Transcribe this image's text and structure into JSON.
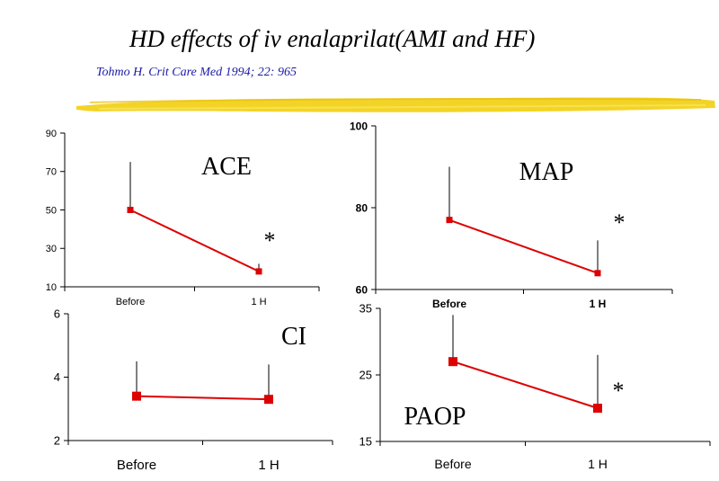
{
  "header": {
    "title": "HD effects of iv enalaprilat(AMI and HF)",
    "citation": "Tohmo H. Crit Care Med 1994; 22: 965"
  },
  "colors": {
    "series": "#dd0000",
    "axis": "#000000",
    "citation": "#1a1aa6",
    "highlighter": "#f2d21a"
  },
  "chart_data": [
    {
      "id": "ace",
      "type": "line",
      "annotation": "ACE",
      "categories": [
        "Before",
        "1 H"
      ],
      "values": [
        50,
        18
      ],
      "error_upper": [
        75,
        22
      ],
      "significance": [
        "",
        "*"
      ],
      "ylim": [
        10,
        90
      ],
      "yticks": [
        "10",
        "30",
        "50",
        "70",
        "90"
      ]
    },
    {
      "id": "map",
      "type": "line",
      "annotation": "MAP",
      "categories": [
        "Before",
        "1 H"
      ],
      "values": [
        77,
        64
      ],
      "error_upper": [
        90,
        72
      ],
      "significance": [
        "",
        "*"
      ],
      "ylim": [
        60,
        100
      ],
      "yticks": [
        "60",
        "80",
        "100"
      ]
    },
    {
      "id": "ci",
      "type": "line",
      "annotation": "CI",
      "categories": [
        "Before",
        "1 H"
      ],
      "values": [
        3.4,
        3.3
      ],
      "error_upper": [
        4.5,
        4.4
      ],
      "significance": [
        "",
        ""
      ],
      "ylim": [
        2,
        6
      ],
      "yticks": [
        "2",
        "4",
        "6"
      ]
    },
    {
      "id": "paop",
      "type": "line",
      "annotation": "PAOP",
      "categories": [
        "Before",
        "1 H"
      ],
      "values": [
        27,
        20
      ],
      "error_upper": [
        34,
        28
      ],
      "significance": [
        "",
        "*"
      ],
      "ylim": [
        15,
        35
      ],
      "yticks": [
        "15",
        "25",
        "35"
      ]
    }
  ]
}
